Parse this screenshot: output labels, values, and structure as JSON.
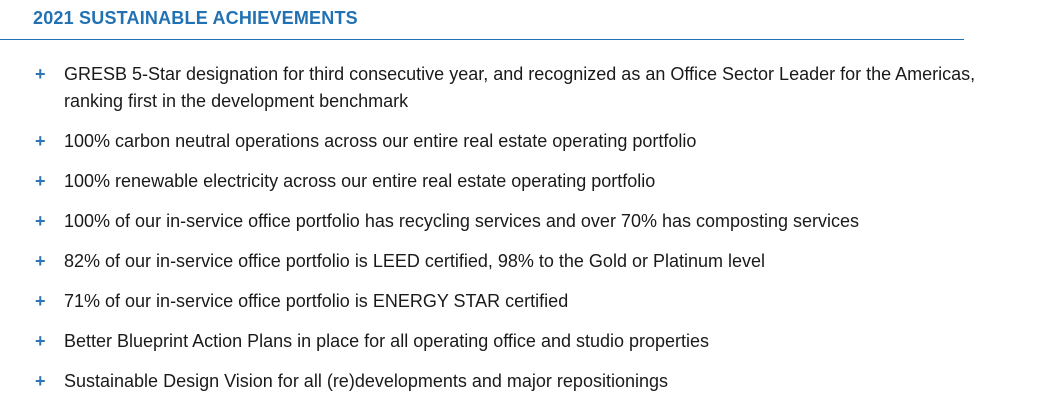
{
  "colors": {
    "accent": "#2271b3",
    "plus": "#2e75b6",
    "text": "#1a1a1a"
  },
  "heading": "2021 SUSTAINABLE ACHIEVEMENTS",
  "bullet_glyph": "+",
  "items": [
    {
      "text": "GRESB 5-Star designation for third consecutive year, and recognized as an Office Sector Leader for the Americas, ranking first in the development benchmark"
    },
    {
      "text": "100% carbon neutral operations across our entire real estate operating portfolio"
    },
    {
      "text": "100% renewable electricity across our entire real estate operating portfolio"
    },
    {
      "text": "100% of our in-service office portfolio has recycling services and over 70% has composting services"
    },
    {
      "text": "82% of our in-service office portfolio is LEED certified, 98% to the Gold or Platinum level"
    },
    {
      "text": "71% of our in-service office portfolio is ENERGY STAR certified"
    },
    {
      "text": "Better Blueprint Action Plans in place for all operating office and studio properties"
    },
    {
      "text": "Sustainable Design Vision for all (re)developments and major repositionings"
    }
  ]
}
